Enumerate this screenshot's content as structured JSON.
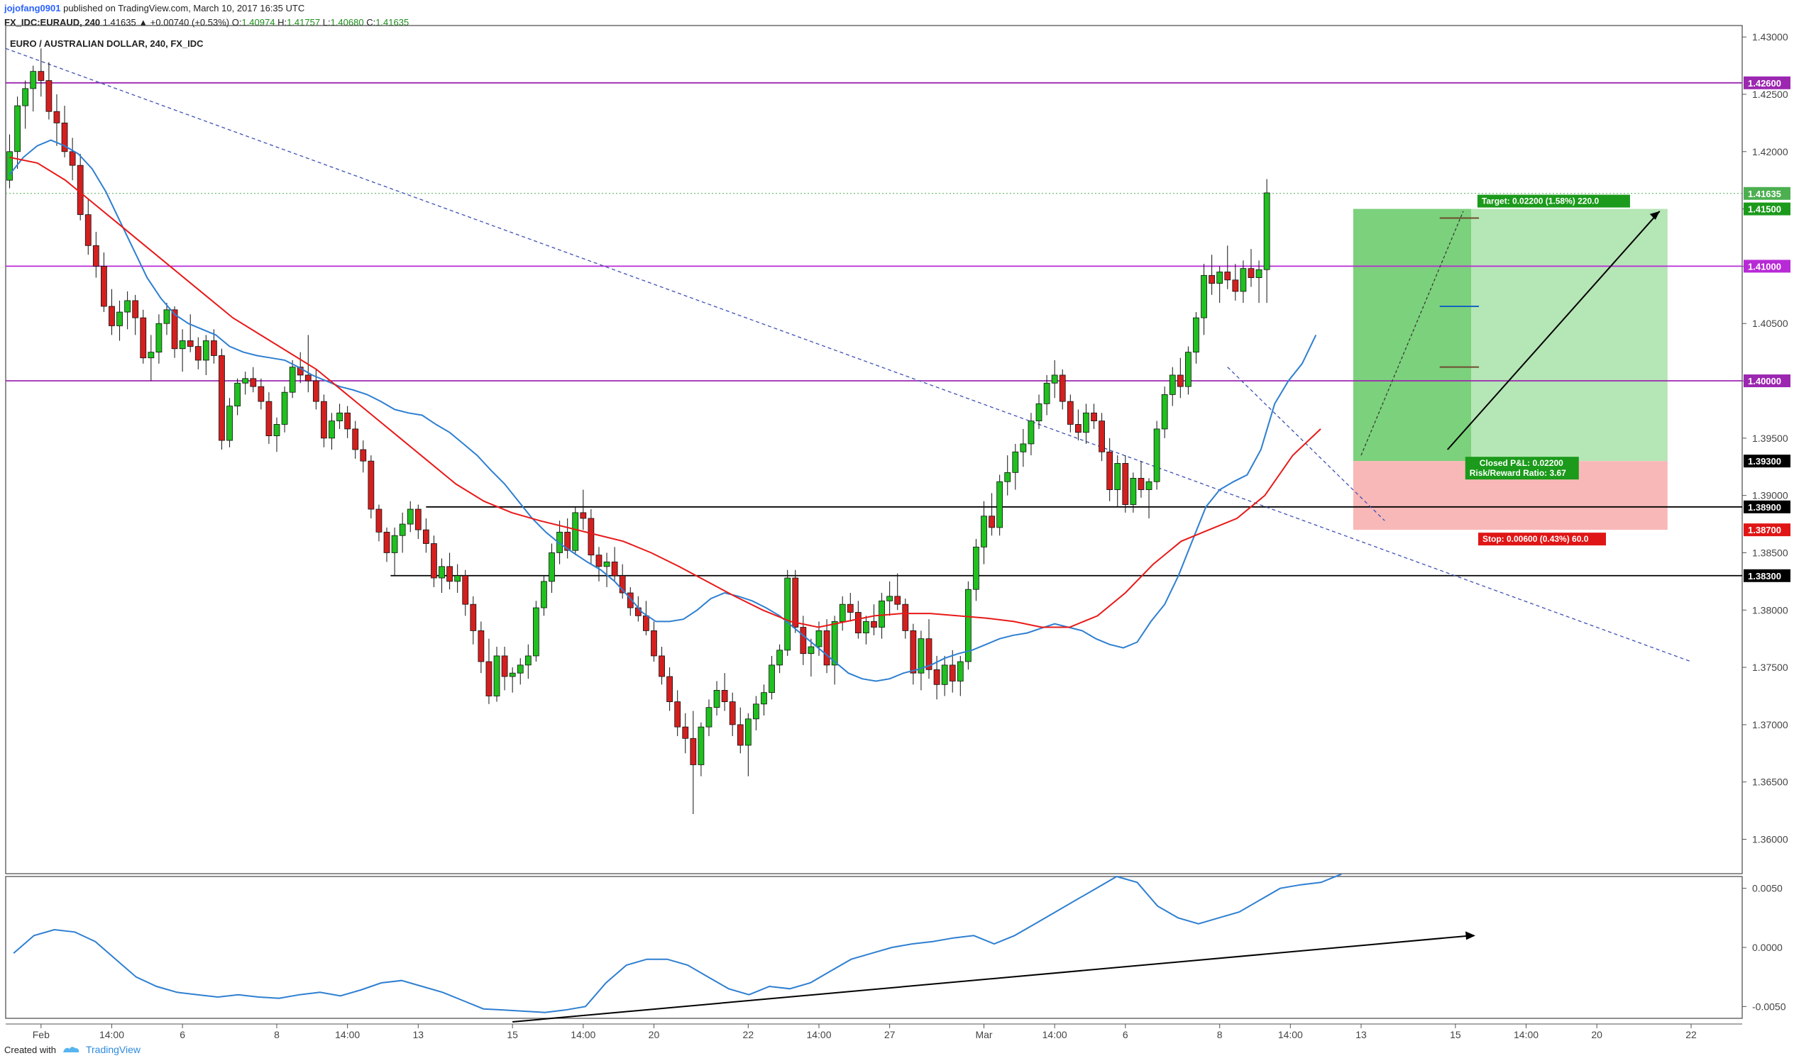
{
  "header": {
    "author": "jojofang0901",
    "published": "published on TradingView.com, March 10, 2017 16:35 UTC",
    "symbol": "FX_IDC:EURAUD, 240",
    "change": "1.41635 ▲ +0.00740 (+0.53%)",
    "o_label": "O:",
    "o": "1.40974",
    "h_label": "H:",
    "h": "1.41757",
    "l_label": "L:",
    "l": "1.40680",
    "c_label": "C:",
    "c": "1.41635"
  },
  "footer": {
    "created_with": "Created with",
    "brand": "TradingView",
    "logo_icon": "tradingview-logo-icon"
  },
  "chart_data": {
    "type": "candlestick",
    "title": "EURO / AUSTRALIAN DOLLAR, 240, FX_IDC",
    "ylim": [
      1.357,
      1.431
    ],
    "y_ticks": [
      "1.36000",
      "1.36500",
      "1.37000",
      "1.37500",
      "1.38000",
      "1.38500",
      "1.39000",
      "1.39500",
      "1.40000",
      "1.40500",
      "1.41000",
      "1.41500",
      "1.42000",
      "1.42500",
      "1.43000"
    ],
    "x_ticks": [
      "Feb",
      "14:00",
      "6",
      "8",
      "14:00",
      "13",
      "15",
      "14:00",
      "20",
      "22",
      "14:00",
      "27",
      "Mar",
      "14:00",
      "6",
      "8",
      "14:00",
      "13",
      "15",
      "14:00",
      "20",
      "22"
    ],
    "x_tick_index": [
      4,
      13,
      22,
      34,
      43,
      52,
      64,
      73,
      82,
      94,
      103,
      112,
      124,
      133,
      142,
      154,
      163,
      172,
      184,
      193,
      202,
      214
    ],
    "total_slots": 221,
    "ohlc": [
      [
        1.4175,
        1.4215,
        1.4168,
        1.42
      ],
      [
        1.42,
        1.4248,
        1.4185,
        1.424
      ],
      [
        1.424,
        1.4262,
        1.422,
        1.4255
      ],
      [
        1.4255,
        1.4275,
        1.4235,
        1.427
      ],
      [
        1.427,
        1.429,
        1.4248,
        1.4262
      ],
      [
        1.4262,
        1.4278,
        1.4228,
        1.4235
      ],
      [
        1.4235,
        1.425,
        1.4205,
        1.4225
      ],
      [
        1.4225,
        1.424,
        1.4195,
        1.42
      ],
      [
        1.42,
        1.4212,
        1.4175,
        1.4188
      ],
      [
        1.4188,
        1.4198,
        1.414,
        1.4145
      ],
      [
        1.4145,
        1.4158,
        1.411,
        1.4118
      ],
      [
        1.4118,
        1.413,
        1.409,
        1.41
      ],
      [
        1.41,
        1.4112,
        1.406,
        1.4065
      ],
      [
        1.4065,
        1.408,
        1.404,
        1.4048
      ],
      [
        1.4048,
        1.407,
        1.4035,
        1.406
      ],
      [
        1.406,
        1.4078,
        1.4045,
        1.407
      ],
      [
        1.407,
        1.4075,
        1.404,
        1.4055
      ],
      [
        1.4055,
        1.4062,
        1.4015,
        1.402
      ],
      [
        1.402,
        1.404,
        1.4,
        1.4025
      ],
      [
        1.4025,
        1.4058,
        1.4015,
        1.405
      ],
      [
        1.405,
        1.4068,
        1.404,
        1.4062
      ],
      [
        1.4062,
        1.4065,
        1.402,
        1.4028
      ],
      [
        1.4028,
        1.4045,
        1.4008,
        1.4035
      ],
      [
        1.4035,
        1.4058,
        1.4025,
        1.403
      ],
      [
        1.403,
        1.4038,
        1.401,
        1.4018
      ],
      [
        1.4018,
        1.404,
        1.4005,
        1.4035
      ],
      [
        1.4035,
        1.4045,
        1.4015,
        1.4022
      ],
      [
        1.4022,
        1.4028,
        1.394,
        1.3948
      ],
      [
        1.3948,
        1.3985,
        1.3942,
        1.3978
      ],
      [
        1.3978,
        1.4002,
        1.397,
        1.3998
      ],
      [
        1.3998,
        1.4008,
        1.3988,
        1.4002
      ],
      [
        1.4002,
        1.4012,
        1.399,
        1.3995
      ],
      [
        1.3995,
        1.4002,
        1.3975,
        1.3982
      ],
      [
        1.3982,
        1.399,
        1.3945,
        1.3952
      ],
      [
        1.3952,
        1.3968,
        1.3938,
        1.3962
      ],
      [
        1.3962,
        1.3995,
        1.3955,
        1.399
      ],
      [
        1.399,
        1.4018,
        1.3985,
        1.4012
      ],
      [
        1.4012,
        1.4025,
        1.3998,
        1.4005
      ],
      [
        1.4005,
        1.404,
        1.399,
        1.4
      ],
      [
        1.4,
        1.401,
        1.3975,
        1.3982
      ],
      [
        1.3982,
        1.3988,
        1.3942,
        1.395
      ],
      [
        1.395,
        1.3972,
        1.394,
        1.3965
      ],
      [
        1.3965,
        1.398,
        1.3958,
        1.3972
      ],
      [
        1.3972,
        1.3978,
        1.395,
        1.3958
      ],
      [
        1.3958,
        1.3965,
        1.3932,
        1.394
      ],
      [
        1.394,
        1.3948,
        1.392,
        1.393
      ],
      [
        1.393,
        1.3935,
        1.388,
        1.3888
      ],
      [
        1.3888,
        1.3892,
        1.386,
        1.3868
      ],
      [
        1.3868,
        1.3872,
        1.3842,
        1.385
      ],
      [
        1.385,
        1.3872,
        1.383,
        1.3865
      ],
      [
        1.3865,
        1.3885,
        1.385,
        1.3875
      ],
      [
        1.3875,
        1.3895,
        1.3868,
        1.3888
      ],
      [
        1.3888,
        1.3892,
        1.3862,
        1.387
      ],
      [
        1.387,
        1.388,
        1.385,
        1.3858
      ],
      [
        1.3858,
        1.3865,
        1.382,
        1.3828
      ],
      [
        1.3828,
        1.3845,
        1.3815,
        1.3838
      ],
      [
        1.3838,
        1.385,
        1.3818,
        1.3825
      ],
      [
        1.3825,
        1.384,
        1.3815,
        1.383
      ],
      [
        1.383,
        1.3835,
        1.3795,
        1.3805
      ],
      [
        1.3805,
        1.3812,
        1.377,
        1.3782
      ],
      [
        1.3782,
        1.379,
        1.3745,
        1.3755
      ],
      [
        1.3755,
        1.3775,
        1.3718,
        1.3725
      ],
      [
        1.3725,
        1.3768,
        1.372,
        1.376
      ],
      [
        1.376,
        1.3768,
        1.373,
        1.3742
      ],
      [
        1.3742,
        1.375,
        1.3728,
        1.3745
      ],
      [
        1.3745,
        1.3758,
        1.3735,
        1.3752
      ],
      [
        1.3752,
        1.377,
        1.374,
        1.376
      ],
      [
        1.376,
        1.3808,
        1.3755,
        1.3802
      ],
      [
        1.3802,
        1.383,
        1.3795,
        1.3825
      ],
      [
        1.3825,
        1.3858,
        1.3815,
        1.385
      ],
      [
        1.385,
        1.3878,
        1.384,
        1.3868
      ],
      [
        1.3868,
        1.388,
        1.3845,
        1.3852
      ],
      [
        1.3852,
        1.389,
        1.3848,
        1.3885
      ],
      [
        1.3885,
        1.3905,
        1.387,
        1.388
      ],
      [
        1.388,
        1.3888,
        1.384,
        1.3848
      ],
      [
        1.3848,
        1.3855,
        1.3825,
        1.3838
      ],
      [
        1.3838,
        1.385,
        1.382,
        1.3842
      ],
      [
        1.3842,
        1.3855,
        1.3825,
        1.383
      ],
      [
        1.383,
        1.384,
        1.381,
        1.3815
      ],
      [
        1.3815,
        1.382,
        1.3795,
        1.3802
      ],
      [
        1.3802,
        1.3812,
        1.379,
        1.3795
      ],
      [
        1.3795,
        1.3808,
        1.3778,
        1.3782
      ],
      [
        1.3782,
        1.379,
        1.3755,
        1.376
      ],
      [
        1.376,
        1.3768,
        1.3735,
        1.3742
      ],
      [
        1.3742,
        1.375,
        1.3712,
        1.372
      ],
      [
        1.372,
        1.373,
        1.369,
        1.3698
      ],
      [
        1.3698,
        1.371,
        1.3675,
        1.3688
      ],
      [
        1.3688,
        1.3712,
        1.3622,
        1.3665
      ],
      [
        1.3665,
        1.3702,
        1.3655,
        1.3698
      ],
      [
        1.3698,
        1.3722,
        1.369,
        1.3715
      ],
      [
        1.3715,
        1.3738,
        1.3708,
        1.373
      ],
      [
        1.373,
        1.3745,
        1.3712,
        1.372
      ],
      [
        1.372,
        1.3728,
        1.369,
        1.37
      ],
      [
        1.37,
        1.3715,
        1.3675,
        1.3682
      ],
      [
        1.3682,
        1.371,
        1.3655,
        1.3705
      ],
      [
        1.3705,
        1.3725,
        1.3695,
        1.3718
      ],
      [
        1.3718,
        1.3735,
        1.3708,
        1.3728
      ],
      [
        1.3728,
        1.376,
        1.3722,
        1.3752
      ],
      [
        1.3752,
        1.377,
        1.3745,
        1.3765
      ],
      [
        1.3765,
        1.3835,
        1.376,
        1.3828
      ],
      [
        1.3828,
        1.3835,
        1.378,
        1.3785
      ],
      [
        1.3785,
        1.3795,
        1.3752,
        1.3762
      ],
      [
        1.3762,
        1.3775,
        1.3742,
        1.3768
      ],
      [
        1.3768,
        1.379,
        1.376,
        1.3782
      ],
      [
        1.3782,
        1.3792,
        1.3745,
        1.3752
      ],
      [
        1.3752,
        1.3795,
        1.3735,
        1.379
      ],
      [
        1.379,
        1.3812,
        1.3782,
        1.3805
      ],
      [
        1.3805,
        1.3815,
        1.379,
        1.3798
      ],
      [
        1.3798,
        1.3808,
        1.3775,
        1.378
      ],
      [
        1.378,
        1.3795,
        1.377,
        1.379
      ],
      [
        1.379,
        1.3805,
        1.3778,
        1.3785
      ],
      [
        1.3785,
        1.3815,
        1.3775,
        1.3808
      ],
      [
        1.3808,
        1.3825,
        1.3795,
        1.3812
      ],
      [
        1.3812,
        1.3832,
        1.38,
        1.3805
      ],
      [
        1.3805,
        1.381,
        1.3775,
        1.3782
      ],
      [
        1.3782,
        1.3788,
        1.3735,
        1.3745
      ],
      [
        1.3745,
        1.3782,
        1.373,
        1.3775
      ],
      [
        1.3775,
        1.3792,
        1.374,
        1.3748
      ],
      [
        1.3748,
        1.376,
        1.3722,
        1.3735
      ],
      [
        1.3735,
        1.376,
        1.3725,
        1.3752
      ],
      [
        1.3752,
        1.3765,
        1.3728,
        1.3738
      ],
      [
        1.3738,
        1.376,
        1.3725,
        1.3755
      ],
      [
        1.3755,
        1.3825,
        1.3748,
        1.3818
      ],
      [
        1.3818,
        1.3862,
        1.3808,
        1.3855
      ],
      [
        1.3855,
        1.3895,
        1.384,
        1.3882
      ],
      [
        1.3882,
        1.3902,
        1.3865,
        1.3872
      ],
      [
        1.3872,
        1.3918,
        1.3865,
        1.3912
      ],
      [
        1.3912,
        1.3935,
        1.39,
        1.392
      ],
      [
        1.392,
        1.3945,
        1.3905,
        1.3938
      ],
      [
        1.3938,
        1.3958,
        1.3925,
        1.3945
      ],
      [
        1.3945,
        1.3972,
        1.3935,
        1.3965
      ],
      [
        1.3965,
        1.3988,
        1.3958,
        1.398
      ],
      [
        1.398,
        1.4005,
        1.397,
        1.3998
      ],
      [
        1.3998,
        1.4018,
        1.3985,
        1.4005
      ],
      [
        1.4005,
        1.401,
        1.3975,
        1.3982
      ],
      [
        1.3982,
        1.3988,
        1.3955,
        1.3962
      ],
      [
        1.3962,
        1.3975,
        1.3948,
        1.3955
      ],
      [
        1.3955,
        1.398,
        1.3945,
        1.3972
      ],
      [
        1.3972,
        1.398,
        1.3958,
        1.3965
      ],
      [
        1.3965,
        1.3972,
        1.393,
        1.3938
      ],
      [
        1.3938,
        1.395,
        1.3895,
        1.3905
      ],
      [
        1.3905,
        1.3935,
        1.389,
        1.3928
      ],
      [
        1.3928,
        1.3935,
        1.3885,
        1.3892
      ],
      [
        1.3892,
        1.392,
        1.3885,
        1.3915
      ],
      [
        1.3915,
        1.393,
        1.3898,
        1.3905
      ],
      [
        1.3905,
        1.3915,
        1.388,
        1.3912
      ],
      [
        1.3912,
        1.3965,
        1.3905,
        1.3958
      ],
      [
        1.3958,
        1.3995,
        1.395,
        1.3988
      ],
      [
        1.3988,
        1.4012,
        1.3978,
        1.4005
      ],
      [
        1.4005,
        1.402,
        1.3985,
        1.3995
      ],
      [
        1.3995,
        1.403,
        1.3988,
        1.4025
      ],
      [
        1.4025,
        1.406,
        1.4015,
        1.4055
      ],
      [
        1.4055,
        1.4102,
        1.404,
        1.4092
      ],
      [
        1.4092,
        1.411,
        1.4075,
        1.4085
      ],
      [
        1.4085,
        1.41,
        1.4068,
        1.4095
      ],
      [
        1.4095,
        1.4118,
        1.408,
        1.4088
      ],
      [
        1.4088,
        1.4102,
        1.407,
        1.4078
      ],
      [
        1.4078,
        1.4105,
        1.4068,
        1.4098
      ],
      [
        1.4098,
        1.4115,
        1.4082,
        1.409
      ],
      [
        1.409,
        1.4105,
        1.4068,
        1.4097
      ],
      [
        1.4097,
        1.4176,
        1.4068,
        1.4164
      ]
    ],
    "ema_fast": [
      1.418,
      1.4195,
      1.4205,
      1.421,
      1.4205,
      1.4198,
      1.4185,
      1.4165,
      1.414,
      1.4115,
      1.409,
      1.4072,
      1.4058,
      1.405,
      1.4045,
      1.404,
      1.403,
      1.4025,
      1.4022,
      1.402,
      1.4018,
      1.4012,
      1.4005,
      1.4,
      1.3995,
      1.3992,
      1.3988,
      1.3982,
      1.3975,
      1.3972,
      1.397,
      1.3962,
      1.3955,
      1.3945,
      1.3935,
      1.3922,
      1.391,
      1.3895,
      1.388,
      1.3868,
      1.3858,
      1.385,
      1.3842,
      1.3835,
      1.3825,
      1.3812,
      1.3798,
      1.379,
      1.379,
      1.3792,
      1.38,
      1.381,
      1.3815,
      1.3812,
      1.3808,
      1.3802,
      1.3795,
      1.3785,
      1.3775,
      1.3765,
      1.3755,
      1.3745,
      1.374,
      1.3738,
      1.374,
      1.3745,
      1.3748,
      1.3752,
      1.3758,
      1.3762,
      1.3765,
      1.377,
      1.3775,
      1.3778,
      1.378,
      1.3784,
      1.3788,
      1.3785,
      1.3782,
      1.3775,
      1.377,
      1.3767,
      1.3772,
      1.379,
      1.3805,
      1.383,
      1.386,
      1.389,
      1.3905,
      1.3912,
      1.3918,
      1.394,
      1.398,
      1.4,
      1.4015,
      1.404
    ],
    "ema_fast_start": 0,
    "ema_fast_step": 1.75,
    "ema_slow": [
      1.4195,
      1.419,
      1.4175,
      1.4155,
      1.4135,
      1.4115,
      1.4095,
      1.4075,
      1.4055,
      1.404,
      1.4025,
      1.401,
      1.399,
      1.397,
      1.395,
      1.393,
      1.391,
      1.3895,
      1.3885,
      1.3878,
      1.3872,
      1.3866,
      1.386,
      1.385,
      1.3838,
      1.3825,
      1.3812,
      1.38,
      1.379,
      1.3785,
      1.379,
      1.3795,
      1.3797,
      1.3797,
      1.3795,
      1.3793,
      1.379,
      1.3785,
      1.3785,
      1.3795,
      1.3815,
      1.384,
      1.386,
      1.387,
      1.388,
      1.39,
      1.3935,
      1.3958
    ],
    "ema_slow_start": 0,
    "ema_slow_step": 3.55,
    "oscillator": {
      "ylim": [
        -0.006,
        0.006
      ],
      "y_ticks": [
        "0.0050",
        "0.0000",
        "-0.0050"
      ],
      "values": [
        -0.0005,
        0.001,
        0.0015,
        0.0013,
        0.0005,
        -0.001,
        -0.0025,
        -0.0033,
        -0.0038,
        -0.004,
        -0.0042,
        -0.004,
        -0.0042,
        -0.0043,
        -0.004,
        -0.0038,
        -0.0041,
        -0.0036,
        -0.003,
        -0.0028,
        -0.0033,
        -0.0038,
        -0.0045,
        -0.0052,
        -0.0053,
        -0.0054,
        -0.0055,
        -0.0053,
        -0.005,
        -0.003,
        -0.0015,
        -0.001,
        -0.001,
        -0.0015,
        -0.0025,
        -0.0035,
        -0.004,
        -0.0033,
        -0.0035,
        -0.003,
        -0.002,
        -0.001,
        -0.0005,
        0.0,
        0.0003,
        0.0005,
        0.0008,
        0.001,
        0.0003,
        0.001,
        0.002,
        0.003,
        0.004,
        0.005,
        0.006,
        0.0055,
        0.0035,
        0.0025,
        0.002,
        0.0025,
        0.003,
        0.004,
        0.005,
        0.0053,
        0.0055,
        0.0062
      ],
      "start": 1,
      "step": 2.6
    }
  },
  "levels": [
    {
      "label": "1.42600",
      "value": 1.426,
      "color": "#9c27b0"
    },
    {
      "label": "1.41000",
      "value": 1.41,
      "color": "#b82ad6"
    },
    {
      "label": "1.40000",
      "value": 1.4,
      "color": "#9c27b0"
    },
    {
      "label": "1.38900",
      "value": 1.389,
      "color": "#000000"
    },
    {
      "label": "1.38300",
      "value": 1.383,
      "color": "#000000"
    }
  ],
  "price_tags": [
    {
      "label": "1.41635",
      "value": 1.41635,
      "color": "#4caf50"
    },
    {
      "label": "1.41500",
      "value": 1.415,
      "color": "#1b9a1b"
    },
    {
      "label": "1.39300",
      "value": 1.393,
      "color": "#000000"
    },
    {
      "label": "1.38700",
      "value": 1.387,
      "color": "#e01616"
    }
  ],
  "position": {
    "entry": 1.393,
    "target": 1.415,
    "stop": 1.387,
    "target_text": "Target: 0.02200 (1.58%) 220.0",
    "stop_text": "Stop: 0.00600 (0.43%) 60.0",
    "pnl_text": "Closed P&L: 0.02200",
    "rr_text": "Risk/Reward Ratio: 3.67"
  },
  "colors": {
    "up": "#1fc01f",
    "down": "#d41f1f",
    "ema_fast": "#2e7fd1",
    "ema_slow": "#e81919",
    "trend": "#3f51b5"
  }
}
